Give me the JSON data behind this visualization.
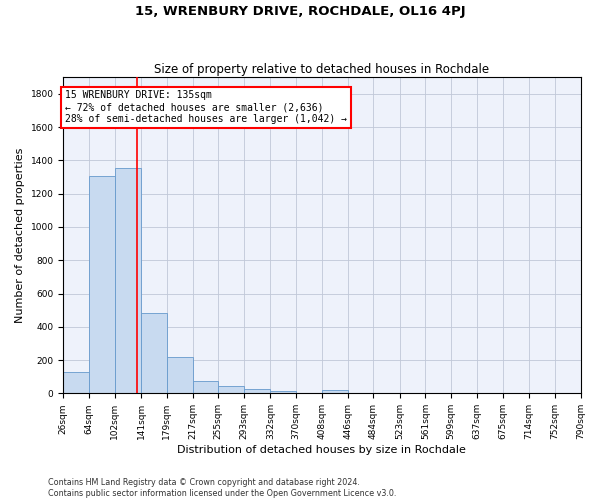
{
  "title": "15, WRENBURY DRIVE, ROCHDALE, OL16 4PJ",
  "subtitle": "Size of property relative to detached houses in Rochdale",
  "xlabel": "Distribution of detached houses by size in Rochdale",
  "ylabel": "Number of detached properties",
  "bar_color": "#c8daf0",
  "bar_edge_color": "#6699cc",
  "background_color": "#eef2fb",
  "grid_color": "#c0c8d8",
  "vline_x": 135,
  "vline_color": "red",
  "annotation_line1": "15 WRENBURY DRIVE: 135sqm",
  "annotation_line2": "← 72% of detached houses are smaller (2,636)",
  "annotation_line3": "28% of semi-detached houses are larger (1,042) →",
  "annotation_box_color": "white",
  "annotation_edge_color": "red",
  "bin_edges": [
    26,
    64,
    102,
    141,
    179,
    217,
    255,
    293,
    332,
    370,
    408,
    446,
    484,
    523,
    561,
    599,
    637,
    675,
    714,
    752,
    790
  ],
  "bar_heights": [
    130,
    1305,
    1355,
    480,
    220,
    75,
    42,
    28,
    15,
    0,
    20,
    0,
    0,
    0,
    0,
    0,
    0,
    0,
    0,
    0
  ],
  "ylim": [
    0,
    1900
  ],
  "yticks": [
    0,
    200,
    400,
    600,
    800,
    1000,
    1200,
    1400,
    1600,
    1800
  ],
  "footer": "Contains HM Land Registry data © Crown copyright and database right 2024.\nContains public sector information licensed under the Open Government Licence v3.0.",
  "title_fontsize": 9.5,
  "subtitle_fontsize": 8.5,
  "tick_fontsize": 6.5,
  "ylabel_fontsize": 8,
  "xlabel_fontsize": 8,
  "annotation_fontsize": 7,
  "footer_fontsize": 5.8
}
